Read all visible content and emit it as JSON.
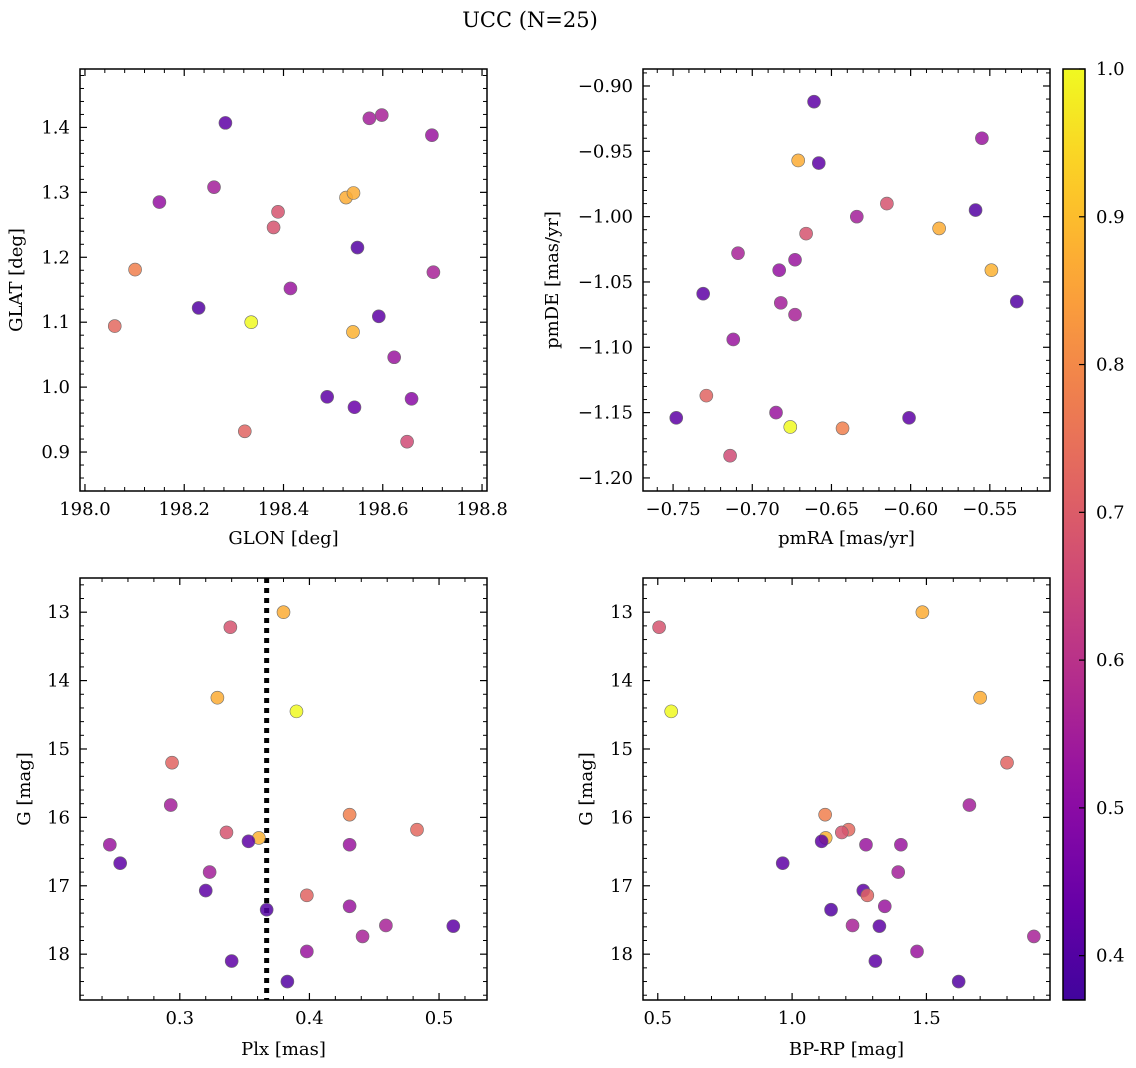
{
  "figure": {
    "title": "UCC (N=25)"
  },
  "colorbar": {
    "min": 0.37,
    "max": 1.0,
    "colormap": "plasma",
    "ticks": [
      0.4,
      0.5,
      0.6,
      0.7,
      0.8,
      0.9,
      1.0
    ],
    "tick_labels": [
      "0.4",
      "0.5",
      "0.6",
      "0.7",
      "0.8",
      "0.9",
      "1.0"
    ]
  },
  "chart_data": [
    {
      "type": "scatter",
      "id": "glon-glat",
      "xlabel": "GLON [deg]",
      "ylabel": "GLAT [deg]",
      "xlim": [
        197.99,
        198.81
      ],
      "ylim": [
        0.84,
        1.49
      ],
      "x_ticks": [
        198.0,
        198.2,
        198.4,
        198.6,
        198.8
      ],
      "x_tick_labels": [
        "198.0",
        "198.2",
        "198.4",
        "198.6",
        "198.8"
      ],
      "y_ticks": [
        0.9,
        1.0,
        1.1,
        1.2,
        1.3,
        1.4
      ],
      "y_tick_labels": [
        "0.9",
        "1.0",
        "1.1",
        "1.2",
        "1.3",
        "1.4"
      ],
      "points": [
        {
          "x": 198.283,
          "y": 1.407,
          "c": 0.42
        },
        {
          "x": 198.573,
          "y": 1.414,
          "c": 0.55
        },
        {
          "x": 198.598,
          "y": 1.419,
          "c": 0.56
        },
        {
          "x": 198.699,
          "y": 1.388,
          "c": 0.53
        },
        {
          "x": 198.15,
          "y": 1.285,
          "c": 0.52
        },
        {
          "x": 198.26,
          "y": 1.308,
          "c": 0.55
        },
        {
          "x": 198.389,
          "y": 1.27,
          "c": 0.68
        },
        {
          "x": 198.38,
          "y": 1.246,
          "c": 0.68
        },
        {
          "x": 198.526,
          "y": 1.292,
          "c": 0.87
        },
        {
          "x": 198.541,
          "y": 1.299,
          "c": 0.87
        },
        {
          "x": 198.549,
          "y": 1.215,
          "c": 0.4
        },
        {
          "x": 198.101,
          "y": 1.181,
          "c": 0.78
        },
        {
          "x": 198.702,
          "y": 1.177,
          "c": 0.56
        },
        {
          "x": 198.414,
          "y": 1.152,
          "c": 0.53
        },
        {
          "x": 198.229,
          "y": 1.122,
          "c": 0.4
        },
        {
          "x": 198.592,
          "y": 1.109,
          "c": 0.42
        },
        {
          "x": 198.335,
          "y": 1.1,
          "c": 1.0
        },
        {
          "x": 198.06,
          "y": 1.094,
          "c": 0.73
        },
        {
          "x": 198.54,
          "y": 1.085,
          "c": 0.88
        },
        {
          "x": 198.623,
          "y": 1.046,
          "c": 0.53
        },
        {
          "x": 198.488,
          "y": 0.985,
          "c": 0.42
        },
        {
          "x": 198.658,
          "y": 0.982,
          "c": 0.5
        },
        {
          "x": 198.543,
          "y": 0.969,
          "c": 0.44
        },
        {
          "x": 198.322,
          "y": 0.932,
          "c": 0.72
        },
        {
          "x": 198.649,
          "y": 0.916,
          "c": 0.66
        }
      ]
    },
    {
      "type": "scatter",
      "id": "pm",
      "xlabel": "pmRA [mas/yr]",
      "ylabel": "pmDE [mas/yr]",
      "xlim": [
        -0.769,
        -0.512
      ],
      "ylim": [
        -1.21,
        -0.887
      ],
      "x_ticks": [
        -0.75,
        -0.7,
        -0.65,
        -0.6,
        -0.55
      ],
      "x_tick_labels": [
        "−0.75",
        "−0.70",
        "−0.65",
        "−0.60",
        "−0.55"
      ],
      "y_ticks": [
        -1.2,
        -1.15,
        -1.1,
        -1.05,
        -1.0,
        -0.95,
        -0.9
      ],
      "y_tick_labels": [
        "−1.20",
        "−1.15",
        "−1.10",
        "−1.05",
        "−1.00",
        "−0.95",
        "−0.90"
      ],
      "points": [
        {
          "x": -0.661,
          "y": -0.912,
          "c": 0.42
        },
        {
          "x": -0.555,
          "y": -0.94,
          "c": 0.53
        },
        {
          "x": -0.671,
          "y": -0.957,
          "c": 0.87
        },
        {
          "x": -0.658,
          "y": -0.959,
          "c": 0.42
        },
        {
          "x": -0.634,
          "y": -1.0,
          "c": 0.55
        },
        {
          "x": -0.615,
          "y": -0.99,
          "c": 0.68
        },
        {
          "x": -0.559,
          "y": -0.995,
          "c": 0.4
        },
        {
          "x": -0.582,
          "y": -1.009,
          "c": 0.87
        },
        {
          "x": -0.666,
          "y": -1.013,
          "c": 0.68
        },
        {
          "x": -0.709,
          "y": -1.028,
          "c": 0.56
        },
        {
          "x": -0.673,
          "y": -1.033,
          "c": 0.53
        },
        {
          "x": -0.683,
          "y": -1.041,
          "c": 0.52
        },
        {
          "x": -0.549,
          "y": -1.041,
          "c": 0.88
        },
        {
          "x": -0.731,
          "y": -1.059,
          "c": 0.42
        },
        {
          "x": -0.533,
          "y": -1.065,
          "c": 0.4
        },
        {
          "x": -0.682,
          "y": -1.066,
          "c": 0.55
        },
        {
          "x": -0.673,
          "y": -1.075,
          "c": 0.56
        },
        {
          "x": -0.712,
          "y": -1.094,
          "c": 0.53
        },
        {
          "x": -0.729,
          "y": -1.137,
          "c": 0.72
        },
        {
          "x": -0.685,
          "y": -1.15,
          "c": 0.53
        },
        {
          "x": -0.748,
          "y": -1.154,
          "c": 0.42
        },
        {
          "x": -0.601,
          "y": -1.154,
          "c": 0.42
        },
        {
          "x": -0.676,
          "y": -1.161,
          "c": 1.0
        },
        {
          "x": -0.643,
          "y": -1.162,
          "c": 0.78
        },
        {
          "x": -0.714,
          "y": -1.183,
          "c": 0.66
        }
      ]
    },
    {
      "type": "scatter",
      "id": "plx-g",
      "xlabel": "Plx [mas]",
      "ylabel": "G [mag]",
      "xlim": [
        0.223,
        0.537
      ],
      "ylim": [
        18.67,
        12.5
      ],
      "x_ticks": [
        0.3,
        0.4,
        0.5
      ],
      "x_tick_labels": [
        "0.3",
        "0.4",
        "0.5"
      ],
      "y_ticks": [
        13,
        14,
        15,
        16,
        17,
        18
      ],
      "y_tick_labels": [
        "13",
        "14",
        "15",
        "16",
        "17",
        "18"
      ],
      "vline": 0.367,
      "points": [
        {
          "x": 0.38,
          "y": 13.0,
          "c": 0.87
        },
        {
          "x": 0.339,
          "y": 13.22,
          "c": 0.68
        },
        {
          "x": 0.329,
          "y": 14.25,
          "c": 0.87
        },
        {
          "x": 0.39,
          "y": 14.45,
          "c": 1.0
        },
        {
          "x": 0.294,
          "y": 15.2,
          "c": 0.72
        },
        {
          "x": 0.293,
          "y": 15.82,
          "c": 0.55
        },
        {
          "x": 0.431,
          "y": 15.96,
          "c": 0.78
        },
        {
          "x": 0.483,
          "y": 16.18,
          "c": 0.73
        },
        {
          "x": 0.336,
          "y": 16.22,
          "c": 0.68
        },
        {
          "x": 0.361,
          "y": 16.3,
          "c": 0.88
        },
        {
          "x": 0.353,
          "y": 16.35,
          "c": 0.42
        },
        {
          "x": 0.246,
          "y": 16.4,
          "c": 0.53
        },
        {
          "x": 0.431,
          "y": 16.4,
          "c": 0.53
        },
        {
          "x": 0.254,
          "y": 16.67,
          "c": 0.42
        },
        {
          "x": 0.323,
          "y": 16.8,
          "c": 0.55
        },
        {
          "x": 0.32,
          "y": 17.07,
          "c": 0.42
        },
        {
          "x": 0.398,
          "y": 17.14,
          "c": 0.72
        },
        {
          "x": 0.431,
          "y": 17.3,
          "c": 0.53
        },
        {
          "x": 0.367,
          "y": 17.35,
          "c": 0.4
        },
        {
          "x": 0.459,
          "y": 17.58,
          "c": 0.56
        },
        {
          "x": 0.511,
          "y": 17.59,
          "c": 0.42
        },
        {
          "x": 0.441,
          "y": 17.74,
          "c": 0.56
        },
        {
          "x": 0.398,
          "y": 17.96,
          "c": 0.53
        },
        {
          "x": 0.34,
          "y": 18.1,
          "c": 0.42
        },
        {
          "x": 0.383,
          "y": 18.4,
          "c": 0.4
        }
      ]
    },
    {
      "type": "scatter",
      "id": "cmd",
      "xlabel": "BP-RP [mag]",
      "ylabel": "G [mag]",
      "xlim": [
        0.445,
        1.96
      ],
      "ylim": [
        18.67,
        12.5
      ],
      "x_ticks": [
        0.5,
        1.0,
        1.5
      ],
      "x_tick_labels": [
        "0.5",
        "1.0",
        "1.5"
      ],
      "y_ticks": [
        13,
        14,
        15,
        16,
        17,
        18
      ],
      "y_tick_labels": [
        "13",
        "14",
        "15",
        "16",
        "17",
        "18"
      ],
      "points": [
        {
          "x": 0.505,
          "y": 13.22,
          "c": 0.68
        },
        {
          "x": 1.485,
          "y": 13.0,
          "c": 0.87
        },
        {
          "x": 0.55,
          "y": 14.45,
          "c": 1.0
        },
        {
          "x": 1.7,
          "y": 14.25,
          "c": 0.87
        },
        {
          "x": 1.8,
          "y": 15.2,
          "c": 0.72
        },
        {
          "x": 1.66,
          "y": 15.82,
          "c": 0.55
        },
        {
          "x": 1.123,
          "y": 15.96,
          "c": 0.78
        },
        {
          "x": 1.21,
          "y": 16.18,
          "c": 0.73
        },
        {
          "x": 1.185,
          "y": 16.22,
          "c": 0.68
        },
        {
          "x": 1.125,
          "y": 16.3,
          "c": 0.88
        },
        {
          "x": 1.11,
          "y": 16.35,
          "c": 0.42
        },
        {
          "x": 1.275,
          "y": 16.4,
          "c": 0.53
        },
        {
          "x": 1.405,
          "y": 16.4,
          "c": 0.53
        },
        {
          "x": 0.965,
          "y": 16.67,
          "c": 0.42
        },
        {
          "x": 1.395,
          "y": 16.8,
          "c": 0.55
        },
        {
          "x": 1.265,
          "y": 17.07,
          "c": 0.42
        },
        {
          "x": 1.28,
          "y": 17.14,
          "c": 0.72
        },
        {
          "x": 1.345,
          "y": 17.3,
          "c": 0.53
        },
        {
          "x": 1.145,
          "y": 17.35,
          "c": 0.4
        },
        {
          "x": 1.225,
          "y": 17.58,
          "c": 0.56
        },
        {
          "x": 1.325,
          "y": 17.59,
          "c": 0.42
        },
        {
          "x": 1.9,
          "y": 17.74,
          "c": 0.56
        },
        {
          "x": 1.465,
          "y": 17.96,
          "c": 0.53
        },
        {
          "x": 1.31,
          "y": 18.1,
          "c": 0.42
        },
        {
          "x": 1.62,
          "y": 18.4,
          "c": 0.4
        }
      ]
    }
  ]
}
